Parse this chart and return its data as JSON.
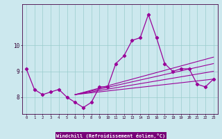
{
  "hours": [
    0,
    1,
    2,
    3,
    4,
    5,
    6,
    7,
    8,
    9,
    10,
    11,
    12,
    13,
    14,
    15,
    16,
    17,
    18,
    19,
    20,
    21,
    22,
    23
  ],
  "windchill": [
    9.1,
    8.3,
    8.1,
    8.2,
    8.3,
    8.0,
    7.8,
    7.6,
    7.8,
    8.4,
    8.4,
    9.3,
    9.6,
    10.2,
    10.3,
    11.2,
    10.3,
    9.3,
    9.0,
    9.1,
    9.1,
    8.5,
    8.4,
    8.7
  ],
  "bg_color": "#cce8ee",
  "line_color": "#990099",
  "grid_color": "#99cccc",
  "xlabel": "Windchill (Refroidissement éolien,°C)",
  "xlabel_color": "#ffffff",
  "xlabel_bg": "#770077",
  "yticks": [
    8,
    9,
    10
  ],
  "ylim": [
    7.35,
    11.6
  ],
  "xlim": [
    -0.5,
    23.5
  ],
  "trend_lines": [
    {
      "x0": 6,
      "y0": 8.1,
      "x1": 23,
      "y1": 8.7
    },
    {
      "x0": 6,
      "y0": 8.1,
      "x1": 23,
      "y1": 9.0
    },
    {
      "x0": 6,
      "y0": 8.1,
      "x1": 23,
      "y1": 9.3
    },
    {
      "x0": 6,
      "y0": 8.1,
      "x1": 23,
      "y1": 9.55
    }
  ]
}
